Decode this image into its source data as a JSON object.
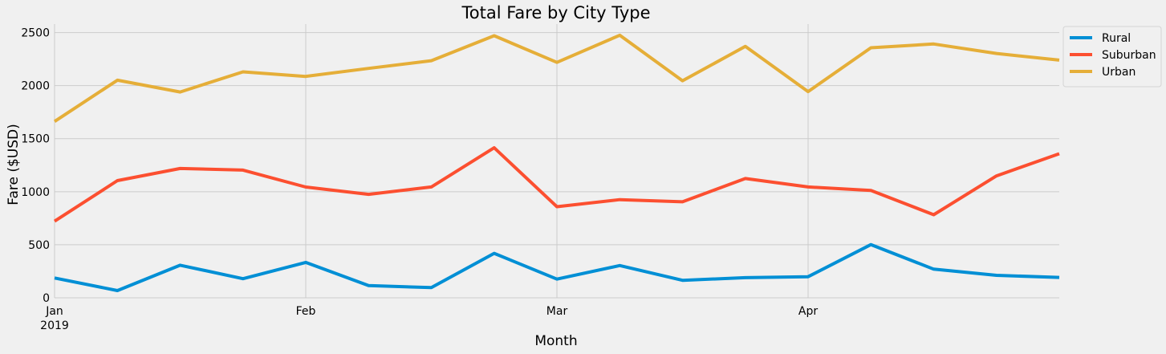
{
  "chart_data": {
    "type": "line",
    "title": "Total Fare by City Type",
    "xlabel": "Month",
    "ylabel": "Fare ($USD)",
    "x": [
      "2019-01-06",
      "2019-01-13",
      "2019-01-20",
      "2019-01-27",
      "2019-02-03",
      "2019-02-10",
      "2019-02-17",
      "2019-02-24",
      "2019-03-03",
      "2019-03-10",
      "2019-03-17",
      "2019-03-24",
      "2019-03-31",
      "2019-04-07",
      "2019-04-14",
      "2019-04-21",
      "2019-04-28"
    ],
    "xlim": [
      "2019-01-06",
      "2019-04-28"
    ],
    "ylim": [
      0,
      2580
    ],
    "y_ticks": [
      0,
      500,
      1000,
      1500,
      2000,
      2500
    ],
    "x_ticks": [
      {
        "date": "2019-01-06",
        "label": "Jan",
        "sublabel": "2019"
      },
      {
        "date": "2019-02-03",
        "label": "Feb",
        "sublabel": ""
      },
      {
        "date": "2019-03-03",
        "label": "Mar",
        "sublabel": ""
      },
      {
        "date": "2019-03-31",
        "label": "Apr",
        "sublabel": ""
      }
    ],
    "grid": true,
    "legend_position": "outside-top-right",
    "series": [
      {
        "name": "Rural",
        "color": "#008fd5",
        "values": [
          187,
          68,
          307,
          180,
          334,
          116,
          96,
          419,
          176,
          304,
          165,
          190,
          199,
          502,
          270,
          212,
          192
        ]
      },
      {
        "name": "Suburban",
        "color": "#fc4f30",
        "values": [
          722,
          1105,
          1219,
          1204,
          1044,
          975,
          1045,
          1414,
          859,
          925,
          905,
          1124,
          1045,
          1012,
          783,
          1149,
          1358
        ]
      },
      {
        "name": "Urban",
        "color": "#e5ae38",
        "values": [
          1662,
          2051,
          1940,
          2130,
          2087,
          2162,
          2235,
          2470,
          2219,
          2475,
          2046,
          2370,
          1944,
          2357,
          2392,
          2303,
          2240
        ]
      }
    ]
  }
}
